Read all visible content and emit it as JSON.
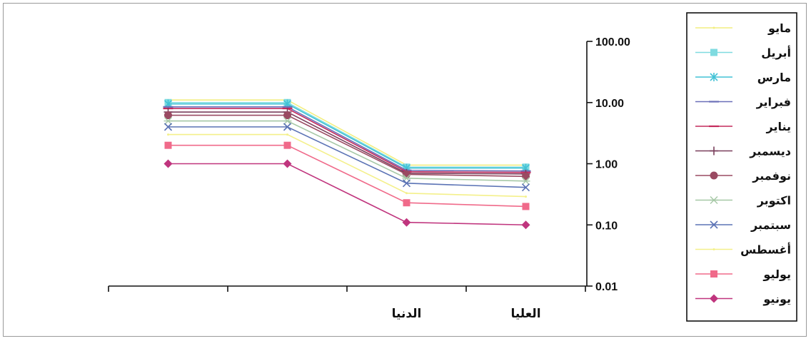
{
  "chart_data": {
    "type": "line",
    "title": "",
    "xlabel": "",
    "ylabel": "",
    "y_scale": "log",
    "ylim": [
      0.01,
      100
    ],
    "y_ticks": [
      "100.00",
      "10.00",
      "1.00",
      "0.10",
      "0.01"
    ],
    "y_tick_values": [
      100,
      10,
      1,
      0.1,
      0.01
    ],
    "categories": [
      "",
      "",
      "الدنيا",
      "العليا"
    ],
    "grid": false,
    "legend_position": "right",
    "series": [
      {
        "name": "مايو",
        "color": "#f2ee80",
        "marker": "none",
        "values": [
          11,
          11,
          0.95,
          0.95
        ]
      },
      {
        "name": "أبريل",
        "color": "#7fdbe0",
        "marker": "square",
        "values": [
          10,
          10,
          0.88,
          0.88
        ]
      },
      {
        "name": "مارس",
        "color": "#42c2d6",
        "marker": "star",
        "values": [
          9.5,
          9.5,
          0.85,
          0.85
        ]
      },
      {
        "name": "فبراير",
        "color": "#6a6fb8",
        "marker": "dash",
        "values": [
          8.5,
          8.5,
          0.78,
          0.76
        ]
      },
      {
        "name": "يناير",
        "color": "#c42a5c",
        "marker": "dash",
        "values": [
          8,
          8,
          0.74,
          0.72
        ]
      },
      {
        "name": "ديسمبر",
        "color": "#7a3f5c",
        "marker": "plus",
        "values": [
          7,
          7,
          0.7,
          0.68
        ]
      },
      {
        "name": "نوفمبر",
        "color": "#9a4a62",
        "marker": "circle",
        "values": [
          6.2,
          6.2,
          0.67,
          0.62
        ]
      },
      {
        "name": "اكتوبر",
        "color": "#a6c8a6",
        "marker": "asterisk",
        "values": [
          5,
          5,
          0.58,
          0.52
        ]
      },
      {
        "name": "سبتمبر",
        "color": "#5b73b5",
        "marker": "x",
        "values": [
          4,
          4,
          0.48,
          0.41
        ]
      },
      {
        "name": "أغسطس",
        "color": "#f4f08a",
        "marker": "none",
        "values": [
          3,
          3,
          0.33,
          0.29
        ]
      },
      {
        "name": "يوليو",
        "color": "#f06a8a",
        "marker": "square",
        "values": [
          2,
          2,
          0.23,
          0.2
        ]
      },
      {
        "name": "يونيو",
        "color": "#c0357e",
        "marker": "diamond",
        "values": [
          1,
          1,
          0.11,
          0.1
        ]
      }
    ]
  }
}
